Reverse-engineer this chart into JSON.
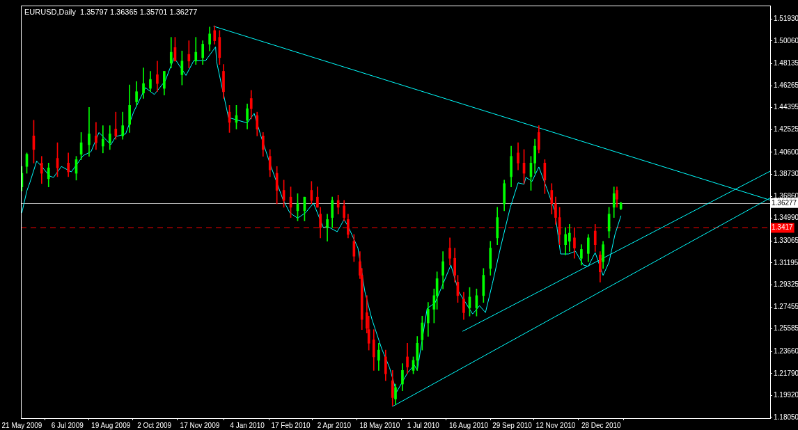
{
  "chart_data": {
    "type": "candlestick",
    "title": "EURUSD,Daily  1.35797 1.36365 1.35701 1.36277",
    "x": [
      "2009-05-21",
      "2009-05-26",
      "2009-06-02",
      "2009-06-10",
      "2009-06-17",
      "2009-06-26",
      "2009-07-07",
      "2009-07-15",
      "2009-07-20",
      "2009-07-28",
      "2009-08-04",
      "2009-08-11",
      "2009-08-18",
      "2009-08-24",
      "2009-08-31",
      "2009-09-07",
      "2009-09-14",
      "2009-09-21",
      "2009-09-28",
      "2009-10-05",
      "2009-10-12",
      "2009-10-19",
      "2009-10-23",
      "2009-10-30",
      "2009-11-06",
      "2009-11-13",
      "2009-11-20",
      "2009-11-27",
      "2009-12-02",
      "2009-12-07",
      "2009-12-11",
      "2009-12-17",
      "2009-12-24",
      "2010-01-04",
      "2010-01-08",
      "2010-01-14",
      "2010-01-20",
      "2010-01-27",
      "2010-02-03",
      "2010-02-10",
      "2010-02-17",
      "2010-02-24",
      "2010-03-03",
      "2010-03-10",
      "2010-03-16",
      "2010-03-19",
      "2010-03-26",
      "2010-03-31",
      "2010-04-06",
      "2010-04-12",
      "2010-04-16",
      "2010-04-22",
      "2010-04-28",
      "2010-04-30",
      "2010-05-05",
      "2010-05-07",
      "2010-05-12",
      "2010-05-17",
      "2010-05-24",
      "2010-05-31",
      "2010-06-03",
      "2010-06-10",
      "2010-06-15",
      "2010-06-21",
      "2010-06-25",
      "2010-06-30",
      "2010-07-06",
      "2010-07-12",
      "2010-07-15",
      "2010-07-21",
      "2010-07-28",
      "2010-08-02",
      "2010-08-05",
      "2010-08-11",
      "2010-08-17",
      "2010-08-24",
      "2010-08-31",
      "2010-09-07",
      "2010-09-14",
      "2010-09-21",
      "2010-09-28",
      "2010-10-05",
      "2010-10-11",
      "2010-10-18",
      "2010-10-22",
      "2010-10-26",
      "2010-11-01",
      "2010-11-08",
      "2010-11-12",
      "2010-11-16",
      "2010-11-22",
      "2010-11-26",
      "2010-12-01",
      "2010-12-08",
      "2010-12-15",
      "2010-12-22",
      "2010-12-27",
      "2010-12-30",
      "2011-01-05",
      "2011-01-10",
      "2011-01-13",
      "2011-01-17"
    ],
    "ohlc": [
      [
        1.3765,
        1.3939,
        1.3731,
        1.3881
      ],
      [
        1.3939,
        1.4054,
        1.3881,
        1.4043
      ],
      [
        1.4199,
        1.4332,
        1.3968,
        1.4083
      ],
      [
        1.3968,
        1.4025,
        1.3794,
        1.3881
      ],
      [
        1.3835,
        1.3968,
        1.3765,
        1.3927
      ],
      [
        1.4008,
        1.4141,
        1.3852,
        1.3927
      ],
      [
        1.3968,
        1.4054,
        1.3852,
        1.3893
      ],
      [
        1.3881,
        1.4025,
        1.3823,
        1.3997
      ],
      [
        1.4043,
        1.4228,
        1.3997,
        1.4141
      ],
      [
        1.4124,
        1.4442,
        1.4025,
        1.4216
      ],
      [
        1.4199,
        1.4314,
        1.4083,
        1.4141
      ],
      [
        1.4112,
        1.4286,
        1.4054,
        1.417
      ],
      [
        1.4141,
        1.4286,
        1.4083,
        1.4216
      ],
      [
        1.4257,
        1.4401,
        1.417,
        1.4199
      ],
      [
        1.4199,
        1.4401,
        1.417,
        1.4286
      ],
      [
        1.4297,
        1.4632,
        1.4228,
        1.4459
      ],
      [
        1.4488,
        1.4661,
        1.4459,
        1.4575
      ],
      [
        1.4563,
        1.4777,
        1.4517,
        1.4644
      ],
      [
        1.4603,
        1.4748,
        1.4575,
        1.4679
      ],
      [
        1.4719,
        1.4835,
        1.4575,
        1.4644
      ],
      [
        1.4603,
        1.4748,
        1.4546,
        1.4748
      ],
      [
        1.4817,
        1.5037,
        1.4777,
        1.491
      ],
      [
        1.495,
        1.5037,
        1.4835,
        1.4835
      ],
      [
        1.4719,
        1.4921,
        1.4632,
        1.4835
      ],
      [
        1.4892,
        1.5008,
        1.4777,
        1.4835
      ],
      [
        1.4835,
        1.5037,
        1.4806,
        1.491
      ],
      [
        1.4864,
        1.5008,
        1.4806,
        1.4979
      ],
      [
        1.4979,
        1.5124,
        1.4921,
        1.5066
      ],
      [
        1.5095,
        1.5135,
        1.4979,
        1.5008
      ],
      [
        1.5037,
        1.5095,
        1.4806,
        1.4864
      ],
      [
        1.4748,
        1.4806,
        1.4517,
        1.4575
      ],
      [
        1.4401,
        1.4459,
        1.4228,
        1.4314
      ],
      [
        1.4314,
        1.4459,
        1.4257,
        1.4372
      ],
      [
        1.4332,
        1.4471,
        1.4257,
        1.443
      ],
      [
        1.4517,
        1.4586,
        1.4343,
        1.443
      ],
      [
        1.4372,
        1.4401,
        1.4199,
        1.4257
      ],
      [
        1.4199,
        1.4228,
        1.4025,
        1.4083
      ],
      [
        1.4025,
        1.4083,
        1.3852,
        1.391
      ],
      [
        1.3881,
        1.3939,
        1.3621,
        1.3736
      ],
      [
        1.3736,
        1.3823,
        1.3592,
        1.365
      ],
      [
        1.3679,
        1.3765,
        1.3505,
        1.3592
      ],
      [
        1.3563,
        1.3708,
        1.3476,
        1.3621
      ],
      [
        1.3563,
        1.3679,
        1.3476,
        1.3679
      ],
      [
        1.3736,
        1.3812,
        1.3621,
        1.365
      ],
      [
        1.3679,
        1.3765,
        1.3592,
        1.3592
      ],
      [
        1.3534,
        1.3592,
        1.3332,
        1.3419
      ],
      [
        1.3419,
        1.3534,
        1.3303,
        1.3488
      ],
      [
        1.3505,
        1.3679,
        1.3419,
        1.365
      ],
      [
        1.365,
        1.3696,
        1.3534,
        1.3592
      ],
      [
        1.3604,
        1.365,
        1.3476,
        1.3505
      ],
      [
        1.3488,
        1.3534,
        1.3332,
        1.3361
      ],
      [
        1.3303,
        1.3361,
        1.313,
        1.3176
      ],
      [
        1.313,
        1.3216,
        1.2985,
        1.3014
      ],
      [
        1.3014,
        1.3072,
        1.2552,
        1.2638
      ],
      [
        1.2696,
        1.2841,
        1.2523,
        1.2563
      ],
      [
        1.2552,
        1.2667,
        1.2378,
        1.2436
      ],
      [
        1.2465,
        1.2552,
        1.2205,
        1.232
      ],
      [
        1.2291,
        1.2436,
        1.2205,
        1.2378
      ],
      [
        1.232,
        1.2378,
        1.2118,
        1.2176
      ],
      [
        1.2118,
        1.2205,
        1.1904,
        1.1974
      ],
      [
        1.1962,
        1.2089,
        1.1916,
        1.206
      ],
      [
        1.2089,
        1.2263,
        1.2031,
        1.2205
      ],
      [
        1.232,
        1.2436,
        1.2176,
        1.2234
      ],
      [
        1.2205,
        1.232,
        1.2176,
        1.2291
      ],
      [
        1.2291,
        1.2494,
        1.2205,
        1.2436
      ],
      [
        1.2465,
        1.2667,
        1.2378,
        1.2609
      ],
      [
        1.2609,
        1.2783,
        1.2494,
        1.2725
      ],
      [
        1.2725,
        1.2898,
        1.2609,
        1.2841
      ],
      [
        1.2841,
        1.3043,
        1.2725,
        1.2985
      ],
      [
        1.3014,
        1.3216,
        1.2898,
        1.313
      ],
      [
        1.3245,
        1.3332,
        1.3101,
        1.3158
      ],
      [
        1.3158,
        1.3245,
        1.2956,
        1.3014
      ],
      [
        1.2956,
        1.3014,
        1.2783,
        1.2841
      ],
      [
        1.2812,
        1.2869,
        1.2638,
        1.2696
      ],
      [
        1.2737,
        1.291,
        1.2667,
        1.2829
      ],
      [
        1.2737,
        1.2898,
        1.2667,
        1.2841
      ],
      [
        1.2841,
        1.3072,
        1.2783,
        1.3014
      ],
      [
        1.3072,
        1.3303,
        1.3014,
        1.3245
      ],
      [
        1.3332,
        1.3592,
        1.3274,
        1.3505
      ],
      [
        1.3621,
        1.3823,
        1.3563,
        1.3794
      ],
      [
        1.3852,
        1.4112,
        1.3765,
        1.4025
      ],
      [
        1.4054,
        1.4141,
        1.391,
        1.3968
      ],
      [
        1.3968,
        1.4083,
        1.3794,
        1.3881
      ],
      [
        1.3852,
        1.4025,
        1.3736,
        1.3968
      ],
      [
        1.3968,
        1.417,
        1.3881,
        1.4112
      ],
      [
        1.4228,
        1.4286,
        1.4054,
        1.4083
      ],
      [
        1.3968,
        1.3997,
        1.3708,
        1.3823
      ],
      [
        1.3736,
        1.3794,
        1.3534,
        1.3621
      ],
      [
        1.3621,
        1.3679,
        1.3447,
        1.3505
      ],
      [
        1.3505,
        1.3592,
        1.3274,
        1.3361
      ],
      [
        1.3274,
        1.3419,
        1.3187,
        1.3361
      ],
      [
        1.3303,
        1.3447,
        1.3216,
        1.3372
      ],
      [
        1.3332,
        1.3419,
        1.3158,
        1.3245
      ],
      [
        1.3158,
        1.3274,
        1.3101,
        1.3234
      ],
      [
        1.3199,
        1.3361,
        1.313,
        1.3332
      ],
      [
        1.339,
        1.3447,
        1.3216,
        1.3274
      ],
      [
        1.3187,
        1.3216,
        1.2956,
        1.3043
      ],
      [
        1.313,
        1.3303,
        1.3072,
        1.3274
      ],
      [
        1.339,
        1.3592,
        1.3332,
        1.3534
      ],
      [
        1.3592,
        1.3765,
        1.3505,
        1.3708
      ],
      [
        1.3736,
        1.3765,
        1.3592,
        1.3661
      ],
      [
        1.35797,
        1.36365,
        1.35701,
        1.36277
      ]
    ],
    "colors": [
      "#00ff00",
      "#00ff00",
      "#ff0000",
      "#ff0000",
      "#00ff00",
      "#ff0000",
      "#ff0000",
      "#00ff00",
      "#00ff00",
      "#00ff00",
      "#ff0000",
      "#00ff00",
      "#00ff00",
      "#ff0000",
      "#00ff00",
      "#00ff00",
      "#00ff00",
      "#00ff00",
      "#00ff00",
      "#ff0000",
      "#00ff00",
      "#00ff00",
      "#ff0000",
      "#00ff00",
      "#ff0000",
      "#00ff00",
      "#00ff00",
      "#00ff00",
      "#ff0000",
      "#ff0000",
      "#ff0000",
      "#ff0000",
      "#00ff00",
      "#00ff00",
      "#ff0000",
      "#ff0000",
      "#ff0000",
      "#ff0000",
      "#ff0000",
      "#ff0000",
      "#ff0000",
      "#00ff00",
      "#00ff00",
      "#ff0000",
      "#ff0000",
      "#ff0000",
      "#00ff00",
      "#00ff00",
      "#ff0000",
      "#ff0000",
      "#ff0000",
      "#ff0000",
      "#ff0000",
      "#ff0000",
      "#ff0000",
      "#ff0000",
      "#ff0000",
      "#00ff00",
      "#ff0000",
      "#ff0000",
      "#00ff00",
      "#00ff00",
      "#ff0000",
      "#00ff00",
      "#00ff00",
      "#00ff00",
      "#00ff00",
      "#00ff00",
      "#00ff00",
      "#00ff00",
      "#ff0000",
      "#ff0000",
      "#ff0000",
      "#ff0000",
      "#00ff00",
      "#00ff00",
      "#00ff00",
      "#00ff00",
      "#00ff00",
      "#00ff00",
      "#00ff00",
      "#ff0000",
      "#ff0000",
      "#00ff00",
      "#00ff00",
      "#ff0000",
      "#ff0000",
      "#ff0000",
      "#ff0000",
      "#ff0000",
      "#00ff00",
      "#00ff00",
      "#ff0000",
      "#00ff00",
      "#00ff00",
      "#ff0000",
      "#ff0000",
      "#00ff00",
      "#00ff00",
      "#00ff00",
      "#ff0000",
      "#00ff00"
    ],
    "series": [
      {
        "type": "line",
        "color": "#00ffff",
        "x": [
          "2009-05-21",
          "2009-05-26",
          "2009-05-29",
          "2009-06-05",
          "2009-06-10",
          "2009-06-18",
          "2009-06-22",
          "2009-06-30",
          "2009-07-10",
          "2009-07-22",
          "2009-07-30",
          "2009-08-07",
          "2009-08-19",
          "2009-08-24",
          "2009-09-03",
          "2009-09-11",
          "2009-09-23",
          "2009-10-02",
          "2009-10-13",
          "2009-10-22",
          "2009-11-03",
          "2009-11-11",
          "2009-11-23",
          "2009-12-03",
          "2009-12-04",
          "2009-12-16",
          "2010-01-04",
          "2010-01-11",
          "2010-01-18",
          "2010-01-28",
          "2010-02-09",
          "2010-02-16",
          "2010-02-24",
          "2010-03-04",
          "2010-03-12",
          "2010-03-22",
          "2010-03-26",
          "2010-04-05",
          "2010-04-12",
          "2010-04-16",
          "2010-04-26",
          "2010-05-03",
          "2010-05-10",
          "2010-05-20",
          "2010-05-28",
          "2010-06-04",
          "2010-06-15",
          "2010-06-22",
          "2010-06-25",
          "2010-07-05",
          "2010-07-13",
          "2010-07-20",
          "2010-07-29",
          "2010-08-06",
          "2010-08-20",
          "2010-08-27",
          "2010-09-02",
          "2010-09-09",
          "2010-09-17",
          "2010-09-27",
          "2010-10-05",
          "2010-10-11",
          "2010-10-13",
          "2010-10-19",
          "2010-10-26",
          "2010-11-03",
          "2010-11-11",
          "2010-11-17",
          "2010-11-25",
          "2010-12-02",
          "2010-12-10",
          "2010-12-15",
          "2010-12-22",
          "2010-12-30",
          "2011-01-05",
          "2011-01-11",
          "2011-01-17"
        ],
        "values": [
          1.3546,
          1.3731,
          1.38,
          1.3985,
          1.3939,
          1.3858,
          1.3846,
          1.3939,
          1.3893,
          1.4031,
          1.4066,
          1.4228,
          1.4124,
          1.4193,
          1.4216,
          1.4401,
          1.4609,
          1.4551,
          1.4667,
          1.4864,
          1.4713,
          1.484,
          1.484,
          1.4956,
          1.4829,
          1.4355,
          1.4309,
          1.439,
          1.4193,
          1.3939,
          1.3661,
          1.3546,
          1.3499,
          1.3546,
          1.3627,
          1.3419,
          1.343,
          1.3384,
          1.3488,
          1.343,
          1.3245,
          1.2875,
          1.2644,
          1.239,
          1.2228,
          1.202,
          1.2182,
          1.2251,
          1.2205,
          1.2732,
          1.2779,
          1.292,
          1.3101,
          1.2873,
          1.2685,
          1.2755,
          1.2697,
          1.2943,
          1.3242,
          1.3588,
          1.38,
          1.3788,
          1.3847,
          1.3811,
          1.3935,
          1.3753,
          1.3565,
          1.3195,
          1.3195,
          1.3219,
          1.3101,
          1.309,
          1.3207,
          1.3013,
          1.3125,
          1.336,
          1.3518
        ]
      },
      {
        "type": "line",
        "color": "#00ffff",
        "x": [
          "2009-12-01",
          "2011-06-17"
        ],
        "values": [
          1.5131,
          1.3653
        ]
      },
      {
        "type": "line",
        "color": "#00ffff",
        "x": [
          "2010-08-10",
          "2011-06-17"
        ],
        "values": [
          1.2538,
          1.3899
        ]
      },
      {
        "type": "line",
        "color": "#00ffff",
        "x": [
          "2010-05-31",
          "2011-06-17"
        ],
        "values": [
          1.1899,
          1.3671
        ]
      }
    ],
    "xlim": [
      "2009-05-20",
      "2011-06-17"
    ],
    "xticks": [
      {
        "value": "2009-05-21",
        "label": "21 May 2009"
      },
      {
        "value": "2009-07-06",
        "label": "6 Jul 2009"
      },
      {
        "value": "2009-08-19",
        "label": "19 Aug 2009"
      },
      {
        "value": "2009-10-02",
        "label": "2 Oct 2009"
      },
      {
        "value": "2009-11-17",
        "label": "17 Nov 2009"
      },
      {
        "value": "2010-01-04",
        "label": "4 Jan 2010"
      },
      {
        "value": "2010-02-17",
        "label": "17 Feb 2010"
      },
      {
        "value": "2010-04-02",
        "label": "2 Apr 2010"
      },
      {
        "value": "2010-05-18",
        "label": "18 May 2010"
      },
      {
        "value": "2010-07-01",
        "label": "1 Jul 2010"
      },
      {
        "value": "2010-08-16",
        "label": "16 Aug 2010"
      },
      {
        "value": "2010-09-29",
        "label": "29 Sep 2010"
      },
      {
        "value": "2010-11-12",
        "label": "12 Nov 2010"
      },
      {
        "value": "2010-12-28",
        "label": "28 Dec 2010"
      }
    ],
    "ylim": [
      1.1799,
      1.5307
    ],
    "yticks": [
      {
        "value": 1.5193,
        "label": "1.51930"
      },
      {
        "value": 1.5006,
        "label": "1.50060"
      },
      1.48135,
      1.46265,
      1.44395,
      1.42525,
      {
        "value": 1.406,
        "label": "1.40600"
      },
      {
        "value": 1.3873,
        "label": "1.38730"
      },
      {
        "value": 1.3686,
        "label": "1.36860"
      },
      {
        "value": 1.3499,
        "label": "1.34990"
      },
      1.33065,
      1.31195,
      1.29325,
      1.27455,
      1.25585,
      {
        "value": 1.2366,
        "label": "1.23660"
      },
      {
        "value": 1.2179,
        "label": "1.21790"
      },
      {
        "value": 1.1992,
        "label": "1.19920"
      },
      {
        "value": 1.1805,
        "label": "1.18050"
      }
    ],
    "ref_lines": [
      {
        "axis": "y",
        "value": 1.36277,
        "label": "1.36277",
        "color": "#b0b0b0"
      },
      {
        "axis": "y",
        "value": 1.3417,
        "label": "1.3417",
        "color": "#ff0000",
        "line_style": "dashed"
      }
    ]
  }
}
